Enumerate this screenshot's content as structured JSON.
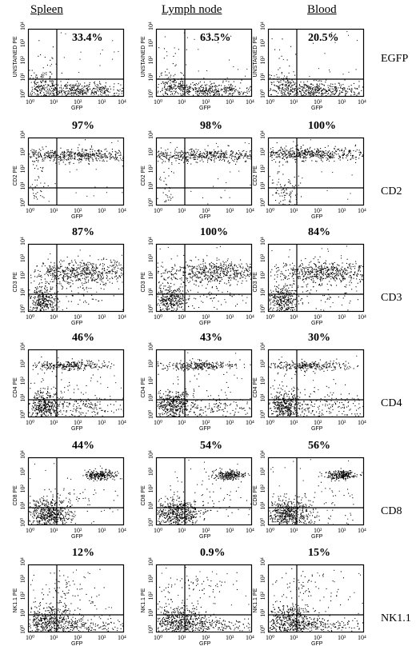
{
  "columns": [
    "Spleen",
    "Lymph node",
    "Blood"
  ],
  "rows": [
    {
      "marker": "EGFP",
      "ylabel": "UNSTAINED PE",
      "percents": [
        "33.4%",
        "63.5%",
        "20.5%"
      ]
    },
    {
      "marker": "CD2",
      "ylabel": "CD2 PE",
      "percents": [
        "97%",
        "98%",
        "100%"
      ]
    },
    {
      "marker": "CD3",
      "ylabel": "CD3 PE",
      "percents": [
        "87%",
        "100%",
        "84%"
      ]
    },
    {
      "marker": "CD4",
      "ylabel": "CD4 PE",
      "percents": [
        "46%",
        "43%",
        "30%"
      ]
    },
    {
      "marker": "CD8",
      "ylabel": "CD8 PE",
      "percents": [
        "44%",
        "54%",
        "56%"
      ]
    },
    {
      "marker": "NK1.1",
      "ylabel": "NK1.1 PE",
      "percents": [
        "12%",
        "0.9%",
        "15%"
      ]
    }
  ],
  "chart_data": {
    "type": "scatter",
    "xlabel": "GFP",
    "x_ticks": [
      "10⁰",
      "10¹",
      "10²",
      "10³",
      "10⁴"
    ],
    "y_ticks": [
      "10⁰",
      "10¹",
      "10²",
      "10³",
      "10⁴"
    ],
    "xlim": [
      1,
      10000
    ],
    "ylim": [
      1,
      10000
    ],
    "scale": "log",
    "quadrant_gate_x": 20,
    "quadrant_gate_y": 20,
    "grid": false,
    "panel_layout": "6 rows x 3 columns"
  }
}
